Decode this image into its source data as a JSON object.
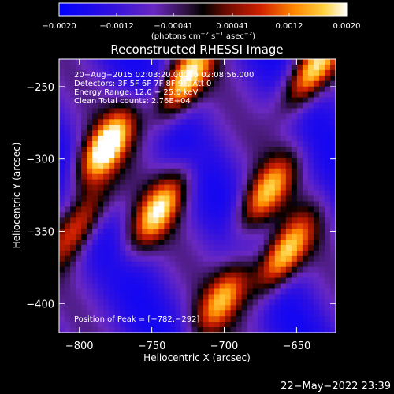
{
  "chart_data": {
    "type": "heatmap",
    "title": "Reconstructed RHESSI Image",
    "xlabel": "Heliocentric X (arcsec)",
    "ylabel": "Heliocentric Y (arcsec)",
    "xlim": [
      -814,
      -623
    ],
    "ylim": [
      -420,
      -231
    ],
    "x_ticks": [
      -800,
      -750,
      -700,
      -650
    ],
    "y_ticks": [
      -400,
      -350,
      -300,
      -250
    ],
    "colorbar": {
      "ticks": [
        -0.002,
        -0.0012,
        -0.00041,
        0.00041,
        0.0012,
        0.002
      ],
      "tick_labels": [
        "−0.0020",
        "−0.0012",
        "−0.00041",
        "0.00041",
        "0.0012",
        "0.0020"
      ],
      "label_main": "(photons cm",
      "label_sup1": "−2",
      "label_mid1": " s",
      "label_sup2": "−1",
      "label_mid2": " asec",
      "label_sup3": "−2",
      "label_end": ")",
      "range": [
        -0.002,
        0.002
      ]
    },
    "annotations": [
      "20−Aug−2015 02:03:20.000 to 02:08:56.000",
      "Detectors: 3F 5F 6F 7F 8F 9F, Att 0",
      "Energy Range: 12.0 − 25.0 keV",
      "Clean    Total counts: 2.76E+04"
    ],
    "peak_label": "Position of Peak = [−782,−292]",
    "peak_position": [
      -782,
      -292
    ],
    "image_grid": {
      "nx": 50,
      "ny": 50,
      "description_free": true
    },
    "bright_sources": [
      {
        "x": -782,
        "y": -292,
        "peak": 0.002
      },
      {
        "x": -728,
        "y": -247,
        "peak": 0.0018
      },
      {
        "x": -640,
        "y": -240,
        "peak": 0.0018
      },
      {
        "x": -745,
        "y": -335,
        "peak": 0.0014
      },
      {
        "x": -672,
        "y": -325,
        "peak": 0.0012
      },
      {
        "x": -660,
        "y": -368,
        "peak": 0.0017
      },
      {
        "x": -800,
        "y": -345,
        "peak": 0.0011
      },
      {
        "x": -700,
        "y": -395,
        "peak": 0.001
      }
    ],
    "grid": false
  },
  "timestamp": "22−May−2022 23:39"
}
